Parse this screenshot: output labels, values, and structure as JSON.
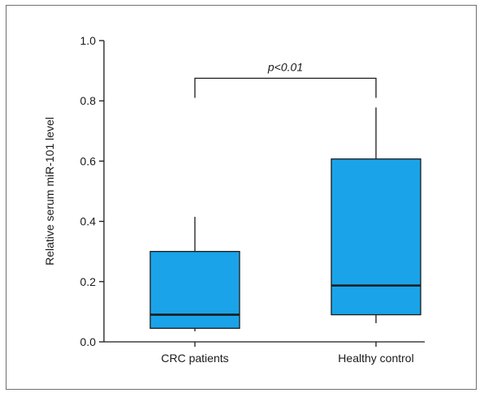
{
  "chart_data": {
    "type": "box",
    "ylabel": "Relative serum miR-101 level",
    "xlabel": "",
    "ylim": [
      0.0,
      1.0
    ],
    "yticks": [
      0.0,
      0.2,
      0.4,
      0.6,
      0.8,
      1.0
    ],
    "ytick_labels": [
      "0.0",
      "0.2",
      "0.4",
      "0.6",
      "0.8",
      "1.0"
    ],
    "categories": [
      "CRC patients",
      "Healthy control"
    ],
    "boxes": [
      {
        "category": "CRC patients",
        "min": 0.035,
        "q1": 0.045,
        "median": 0.09,
        "q3": 0.3,
        "max": 0.415
      },
      {
        "category": "Healthy control",
        "min": 0.062,
        "q1": 0.09,
        "median": 0.187,
        "q3": 0.607,
        "max": 0.778
      }
    ],
    "box_color": "#1aa3e8",
    "median_color": "#1a1a1a",
    "significance": {
      "label": "p<0.01",
      "between": [
        "CRC patients",
        "Healthy control"
      ],
      "y": 0.875,
      "drop_to": 0.81
    },
    "grid": false,
    "legend": "none"
  }
}
